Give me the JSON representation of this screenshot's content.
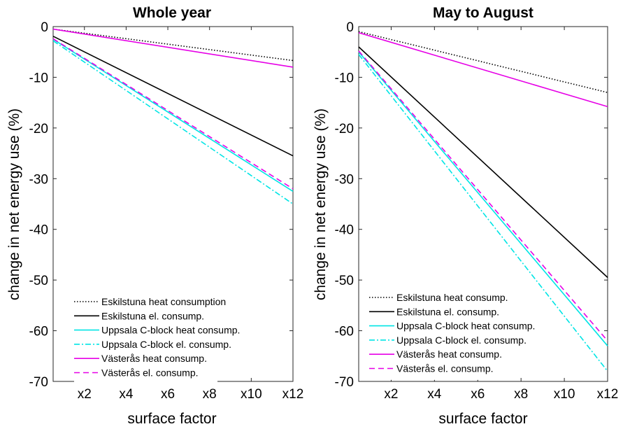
{
  "figure": {
    "ylabel": "change in net energy use (%)",
    "xlabel": "surface factor"
  },
  "chart_data": [
    {
      "type": "line",
      "title": "Whole year",
      "xlabel": "surface factor",
      "ylabel": "change in net energy use (%)",
      "xlim": [
        0.5,
        12
      ],
      "ylim": [
        -70,
        0
      ],
      "xticks": [
        2,
        4,
        6,
        8,
        10,
        12
      ],
      "xtick_labels": [
        "x2",
        "x4",
        "x6",
        "x8",
        "x10",
        "x12"
      ],
      "yticks": [
        0,
        -10,
        -20,
        -30,
        -40,
        -50,
        -60,
        -70
      ],
      "ytick_labels": [
        "0",
        "-10",
        "-20",
        "-30",
        "-40",
        "-50",
        "-60",
        "-70"
      ],
      "legend_position": "bottom-left",
      "series": [
        {
          "name": "Eskilstuna heat consumption",
          "color": "#000000",
          "dash": "dotted",
          "x": [
            0.5,
            12
          ],
          "y": [
            -0.5,
            -6.7
          ]
        },
        {
          "name": "Eskilstuna el. consump.",
          "color": "#000000",
          "dash": "solid",
          "x": [
            0.5,
            12
          ],
          "y": [
            -1.9,
            -25.5
          ]
        },
        {
          "name": "Uppsala C-block heat consump.",
          "color": "#00e5e5",
          "dash": "solid",
          "x": [
            0.5,
            12
          ],
          "y": [
            -2.5,
            -32.5
          ]
        },
        {
          "name": "Uppsala C-block el. consump.",
          "color": "#00e5e5",
          "dash": "dashdot",
          "x": [
            0.5,
            12
          ],
          "y": [
            -2.8,
            -35.0
          ]
        },
        {
          "name": "Västerås heat consump.",
          "color": "#e600e6",
          "dash": "solid",
          "x": [
            0.5,
            12
          ],
          "y": [
            -0.5,
            -8.0
          ]
        },
        {
          "name": "Västerås el. consump.",
          "color": "#e600e6",
          "dash": "dashed",
          "x": [
            0.5,
            12
          ],
          "y": [
            -2.4,
            -32.0
          ]
        }
      ]
    },
    {
      "type": "line",
      "title": "May to August",
      "xlabel": "surface factor",
      "ylabel": "change in net energy use (%)",
      "xlim": [
        0.5,
        12
      ],
      "ylim": [
        -70,
        0
      ],
      "xticks": [
        2,
        4,
        6,
        8,
        10,
        12
      ],
      "xtick_labels": [
        "x2",
        "x4",
        "x6",
        "x8",
        "x10",
        "x12"
      ],
      "yticks": [
        0,
        -10,
        -20,
        -30,
        -40,
        -50,
        -60,
        -70
      ],
      "ytick_labels": [
        "0",
        "-10",
        "-20",
        "-30",
        "-40",
        "-50",
        "-60",
        "-70"
      ],
      "legend_position": "bottom-left",
      "series": [
        {
          "name": "Eskilstuna heat consump.",
          "color": "#000000",
          "dash": "dotted",
          "x": [
            0.5,
            12
          ],
          "y": [
            -1.0,
            -13.0
          ]
        },
        {
          "name": "Eskilstuna el. consump.",
          "color": "#000000",
          "dash": "solid",
          "x": [
            0.5,
            12
          ],
          "y": [
            -4.0,
            -49.5
          ]
        },
        {
          "name": "Uppsala C-block heat consump.",
          "color": "#00e5e5",
          "dash": "solid",
          "x": [
            0.5,
            12
          ],
          "y": [
            -5.0,
            -63.0
          ]
        },
        {
          "name": "Uppsala C-block el. consump.",
          "color": "#00e5e5",
          "dash": "dashdot",
          "x": [
            0.5,
            12
          ],
          "y": [
            -5.5,
            -68.0
          ]
        },
        {
          "name": "Västerås heat consump.",
          "color": "#e600e6",
          "dash": "solid",
          "x": [
            0.5,
            12
          ],
          "y": [
            -1.2,
            -15.8
          ]
        },
        {
          "name": "Västerås el. consump.",
          "color": "#e600e6",
          "dash": "dashed",
          "x": [
            0.5,
            12
          ],
          "y": [
            -4.8,
            -62.0
          ]
        }
      ]
    }
  ]
}
